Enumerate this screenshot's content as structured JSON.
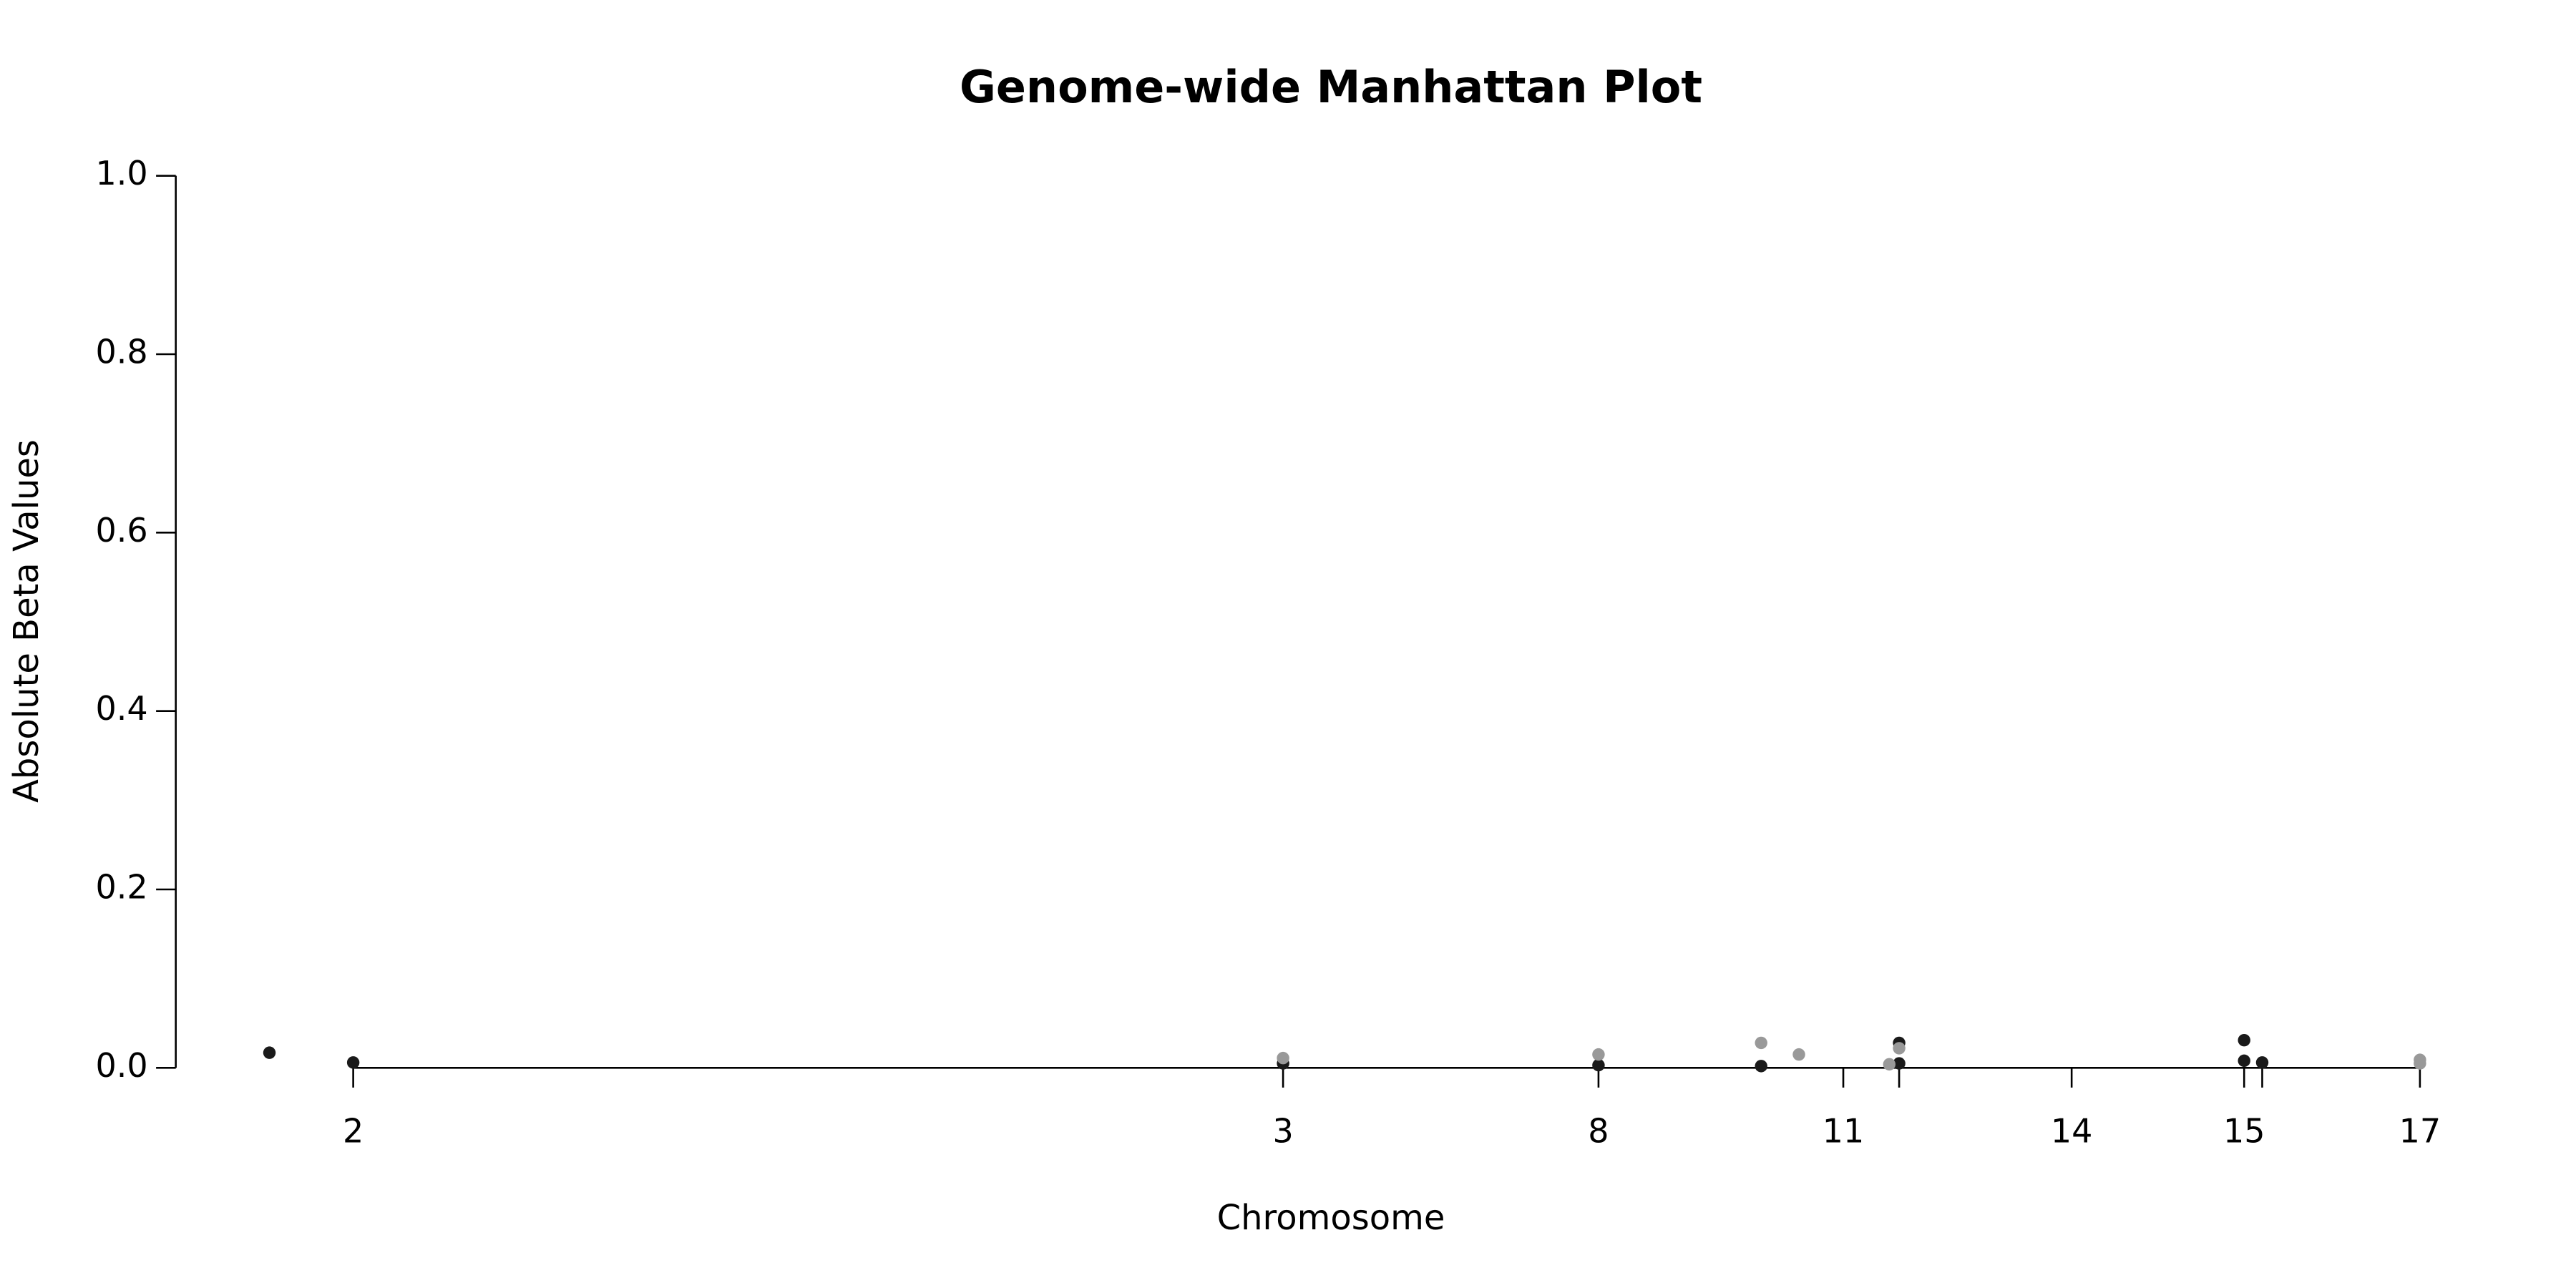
{
  "chart_data": {
    "type": "scatter",
    "title": "Genome-wide Manhattan Plot",
    "x_label": "Chromosome",
    "y_label": "Absolute Beta Values",
    "xlim": [
      0,
      1568
    ],
    "ylim": [
      0,
      1
    ],
    "yticks": [
      {
        "value": 0,
        "label": "0.0"
      },
      {
        "value": 0.2,
        "label": "0.2"
      },
      {
        "value": 0.4,
        "label": "0.4"
      },
      {
        "value": 0.6,
        "label": "0.6"
      },
      {
        "value": 0.8,
        "label": "0.8"
      },
      {
        "value": 1,
        "label": "1.0"
      }
    ],
    "xticks": [
      {
        "value": 215,
        "label": "2"
      },
      {
        "value": 781,
        "label": "3"
      },
      {
        "value": 973,
        "label": "8"
      },
      {
        "value": 1122,
        "label": "11"
      },
      {
        "value": 1156,
        "label": null
      },
      {
        "value": 1261,
        "label": "14"
      },
      {
        "value": 1366,
        "label": "15"
      },
      {
        "value": 1377,
        "label": null
      },
      {
        "value": 1473,
        "label": "17"
      }
    ],
    "series": [
      {
        "color": "#1a1a1a",
        "x": [
          164,
          215,
          781,
          973,
          1072,
          1156,
          1156,
          1366,
          1366,
          1377
        ],
        "values": [
          0.017,
          0.006,
          0.005,
          0.003,
          0.002,
          0.028,
          0.005,
          0.031,
          0.008,
          0.006
        ]
      },
      {
        "color": "#999999",
        "x": [
          781,
          973,
          1072,
          1095,
          1150,
          1156,
          1473,
          1473
        ],
        "values": [
          0.011,
          0.015,
          0.028,
          0.015,
          0.004,
          0.022,
          0.009,
          0.005
        ]
      }
    ]
  }
}
